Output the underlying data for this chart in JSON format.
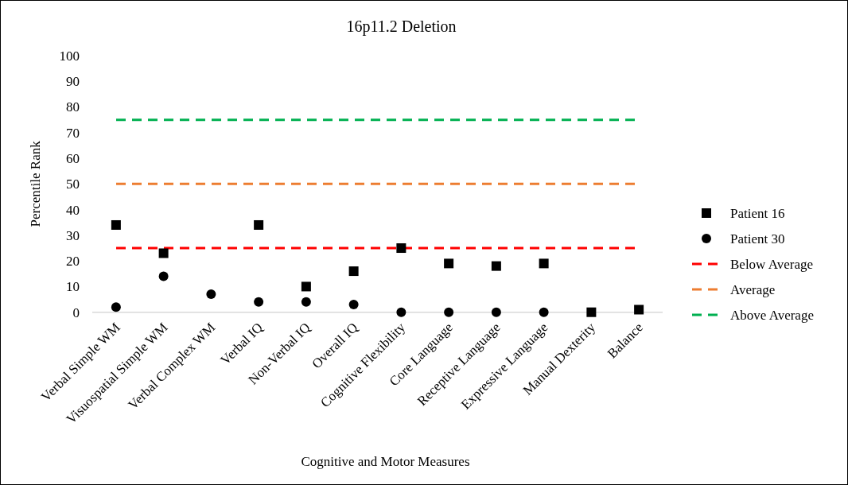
{
  "chart_data": {
    "type": "scatter",
    "title": "16p11.2 Deletion",
    "xlabel": "Cognitive and Motor Measures",
    "ylabel": "Percentile Rank",
    "categories": [
      "Verbal Simple WM",
      "Visuospatial Simple WM",
      "Verbal Complex WM",
      "Verbal IQ",
      "Non-Verbal IQ",
      "Overall IQ",
      "Cognitive Flexibility",
      "Core Language",
      "Receptive Language",
      "Expressive Language",
      "Manual Dexterity",
      "Balance"
    ],
    "series": [
      {
        "name": "Patient 16",
        "color": "#000000",
        "marker": "square",
        "values": [
          34,
          23,
          null,
          34,
          10,
          16,
          25,
          19,
          18,
          19,
          0,
          1
        ]
      },
      {
        "name": "Patient 30",
        "color": "#000000",
        "marker": "circle",
        "values": [
          2,
          14,
          7,
          4,
          4,
          3,
          0,
          0,
          0,
          0,
          null,
          null
        ]
      }
    ],
    "ref_lines": [
      {
        "axis": "y",
        "value": 25,
        "label": "Below Average",
        "color": "#ff0000",
        "line_style": "dashed"
      },
      {
        "axis": "y",
        "value": 50,
        "label": "Average",
        "color": "#ed7d31",
        "line_style": "dashed"
      },
      {
        "axis": "y",
        "value": 75,
        "label": "Above Average",
        "color": "#00b050",
        "line_style": "dashed"
      }
    ],
    "ylim": [
      0,
      100
    ],
    "yticks": [
      0,
      10,
      20,
      30,
      40,
      50,
      60,
      70,
      80,
      90,
      100
    ],
    "grid": false,
    "legend": "right"
  }
}
